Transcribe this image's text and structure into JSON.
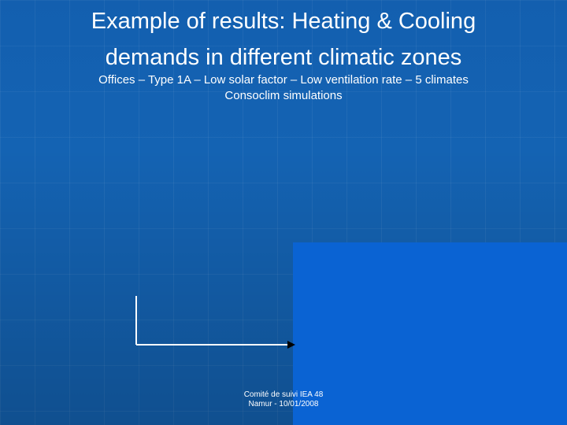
{
  "slide": {
    "title_line1": "Example of results: Heating & Cooling",
    "title_line2": "demands in different climatic zones",
    "subtitle_line1": "Offices – Type 1A – Low solar factor – Low ventilation rate – 5 climates",
    "subtitle_line2": "Consoclim simulations",
    "footer_line1": "Comité de suivi IEA 48",
    "footer_line2": "Namur - 10/01/2008"
  },
  "colors": {
    "background": "#1463b3",
    "panel": "#0a63d3",
    "text": "#ffffff"
  }
}
